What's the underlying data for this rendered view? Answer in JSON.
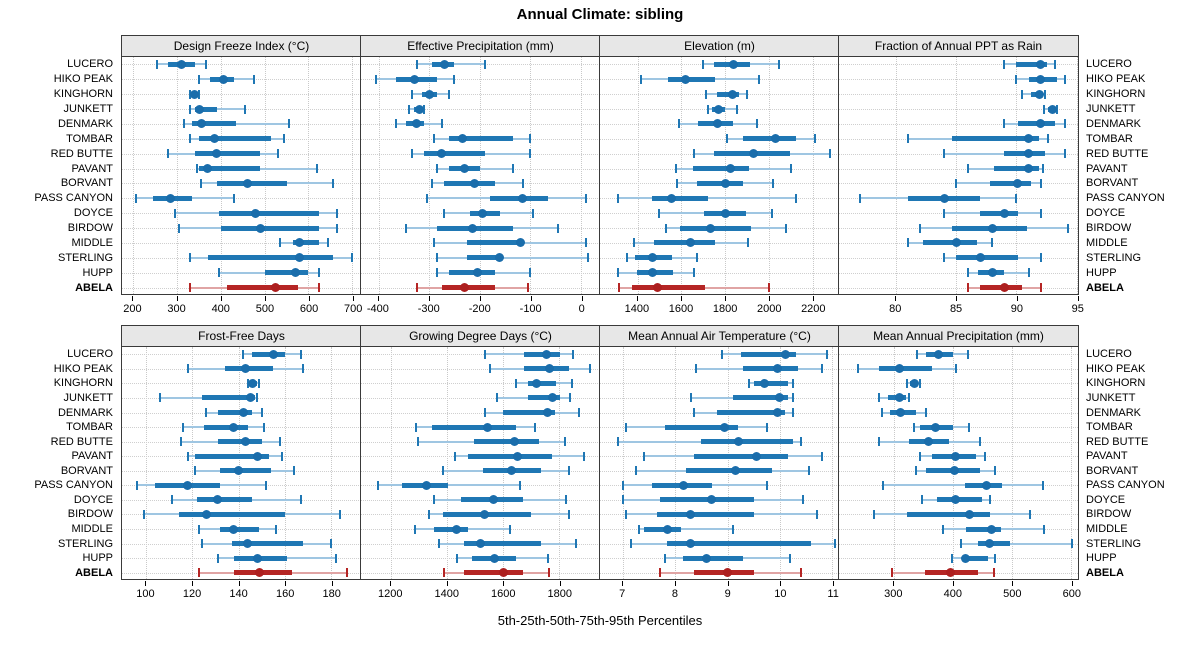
{
  "title": "Annual Climate: sibling",
  "caption": "5th-25th-50th-75th-95th Percentiles",
  "highlight_station": "ABELA",
  "colors": {
    "series": "#1f77b4",
    "series_light": "#9fc6e2",
    "highlight": "#b52524",
    "highlight_light": "#e0a4a4",
    "header_bg": "#e7e7e7",
    "panel_border": "#3a3a3a",
    "grid": "#cccccc"
  },
  "chart_data": {
    "type": "dotplot-percentiles",
    "percentiles": [
      5,
      25,
      50,
      75,
      95
    ],
    "legend_note": "thin line = 5th-95th, thick bar = 25th-75th, dot = 50th percentile",
    "grid": "dotted",
    "stations": [
      "LUCERO",
      "HIKO PEAK",
      "KINGHORN",
      "JUNKETT",
      "DENMARK",
      "TOMBAR",
      "RED BUTTE",
      "PAVANT",
      "BORVANT",
      "PASS CANYON",
      "DOYCE",
      "BIRDOW",
      "MIDDLE",
      "STERLING",
      "HUPP",
      "ABELA"
    ],
    "panels": [
      {
        "title": "Design Freeze Index (°C)",
        "xlim": [
          174,
          720
        ],
        "ticks": [
          200,
          300,
          400,
          500,
          600,
          700
        ],
        "rows": [
          [
            255,
            280,
            310,
            340,
            365
          ],
          [
            350,
            375,
            405,
            430,
            475
          ],
          [
            330,
            335,
            340,
            345,
            350
          ],
          [
            330,
            340,
            350,
            390,
            455
          ],
          [
            315,
            335,
            355,
            435,
            555
          ],
          [
            330,
            350,
            385,
            515,
            545
          ],
          [
            280,
            340,
            390,
            490,
            530
          ],
          [
            345,
            350,
            370,
            490,
            620
          ],
          [
            355,
            390,
            460,
            550,
            655
          ],
          [
            205,
            245,
            285,
            335,
            430
          ],
          [
            295,
            395,
            480,
            625,
            665
          ],
          [
            305,
            400,
            490,
            625,
            665
          ],
          [
            535,
            565,
            580,
            625,
            645
          ],
          [
            330,
            370,
            580,
            655,
            700
          ],
          [
            395,
            500,
            570,
            600,
            625
          ],
          [
            330,
            415,
            525,
            575,
            625
          ]
        ]
      },
      {
        "title": "Effective Precipitation (mm)",
        "xlim": [
          -435,
          38
        ],
        "ticks": [
          -400,
          -300,
          -200,
          -100,
          0
        ],
        "rows": [
          [
            -325,
            -295,
            -270,
            -250,
            -190
          ],
          [
            -405,
            -365,
            -330,
            -285,
            -250
          ],
          [
            -335,
            -315,
            -300,
            -285,
            -260
          ],
          [
            -340,
            -330,
            -320,
            -315,
            -310
          ],
          [
            -365,
            -345,
            -325,
            -310,
            -275
          ],
          [
            -290,
            -260,
            -235,
            -135,
            -100
          ],
          [
            -335,
            -310,
            -275,
            -190,
            -100
          ],
          [
            -285,
            -260,
            -230,
            -200,
            -135
          ],
          [
            -295,
            -270,
            -210,
            -170,
            -115
          ],
          [
            -305,
            -180,
            -115,
            -65,
            10
          ],
          [
            -270,
            -220,
            -195,
            -160,
            -95
          ],
          [
            -345,
            -285,
            -215,
            -135,
            -45
          ],
          [
            -290,
            -225,
            -120,
            -115,
            10
          ],
          [
            -285,
            -225,
            -160,
            -155,
            15
          ],
          [
            -285,
            -260,
            -205,
            -170,
            -100
          ],
          [
            -325,
            -275,
            -230,
            -170,
            -105
          ]
        ]
      },
      {
        "title": "Elevation (m)",
        "xlim": [
          1228,
          2321
        ],
        "ticks": [
          1400,
          1600,
          1800,
          2000,
          2200
        ],
        "rows": [
          [
            1700,
            1750,
            1840,
            1915,
            2045
          ],
          [
            1415,
            1540,
            1620,
            1755,
            1955
          ],
          [
            1715,
            1765,
            1835,
            1865,
            1900
          ],
          [
            1720,
            1740,
            1770,
            1800,
            1855
          ],
          [
            1590,
            1675,
            1765,
            1835,
            1945
          ],
          [
            1810,
            1880,
            2030,
            2125,
            2210
          ],
          [
            1660,
            1750,
            1930,
            2095,
            2280
          ],
          [
            1575,
            1655,
            1825,
            1910,
            2100
          ],
          [
            1580,
            1670,
            1800,
            1880,
            2020
          ],
          [
            1310,
            1465,
            1555,
            1720,
            2125
          ],
          [
            1500,
            1705,
            1800,
            1895,
            2015
          ],
          [
            1530,
            1595,
            1735,
            1920,
            2080
          ],
          [
            1385,
            1475,
            1640,
            1755,
            1905
          ],
          [
            1350,
            1390,
            1470,
            1555,
            1670
          ],
          [
            1310,
            1395,
            1470,
            1560,
            1660
          ],
          [
            1315,
            1375,
            1490,
            1710,
            2000
          ]
        ]
      },
      {
        "title": "Fraction of Annual PPT as Rain",
        "xlim": [
          75.3,
          95.1
        ],
        "ticks": [
          80,
          85,
          90,
          95
        ],
        "rows": [
          [
            89,
            90,
            92,
            92.5,
            93.2
          ],
          [
            90,
            91,
            92,
            93.4,
            94
          ],
          [
            90.5,
            91.2,
            91.9,
            92.2,
            92.4
          ],
          [
            92.3,
            92.6,
            93,
            93.2,
            93.4
          ],
          [
            89,
            90.1,
            92,
            93.2,
            94
          ],
          [
            81,
            84.7,
            91,
            91.9,
            92.6
          ],
          [
            84,
            89,
            91,
            92.4,
            94
          ],
          [
            86,
            88.1,
            91,
            91.9,
            92.2
          ],
          [
            85,
            87.8,
            90.1,
            91.2,
            92
          ],
          [
            77,
            81,
            84,
            87,
            90
          ],
          [
            84,
            87,
            89,
            90.1,
            92
          ],
          [
            82,
            84.7,
            88,
            90.9,
            94.3
          ],
          [
            81,
            82.3,
            85,
            86.7,
            88
          ],
          [
            84,
            85,
            87,
            90.1,
            92
          ],
          [
            86,
            86.8,
            88,
            89,
            91
          ],
          [
            86,
            87,
            89,
            90.5,
            92
          ]
        ]
      },
      {
        "title": "Frost-Free Days",
        "xlim": [
          89.5,
          193
        ],
        "ticks": [
          100,
          120,
          140,
          160,
          180
        ],
        "rows": [
          [
            142,
            146,
            155,
            160,
            167
          ],
          [
            118,
            134,
            143,
            155,
            168
          ],
          [
            144,
            145,
            146,
            148,
            149
          ],
          [
            106,
            124,
            145,
            147,
            148
          ],
          [
            126,
            131,
            142,
            146,
            150
          ],
          [
            116,
            125,
            138,
            144,
            151
          ],
          [
            115,
            131,
            143,
            150,
            158
          ],
          [
            118,
            121,
            148,
            153,
            159
          ],
          [
            121,
            132,
            140,
            154,
            164
          ],
          [
            96,
            104,
            118,
            132,
            152
          ],
          [
            111,
            122,
            131,
            146,
            167
          ],
          [
            99,
            114,
            126,
            160,
            184
          ],
          [
            123,
            132,
            138,
            149,
            156
          ],
          [
            124,
            137,
            144,
            168,
            180
          ],
          [
            131,
            138,
            148,
            161,
            182
          ],
          [
            123,
            138,
            149,
            163,
            187
          ]
        ]
      },
      {
        "title": "Growing Degree Days (°C)",
        "xlim": [
          1093,
          1946
        ],
        "ticks": [
          1200,
          1400,
          1600,
          1800
        ],
        "rows": [
          [
            1535,
            1675,
            1755,
            1805,
            1850
          ],
          [
            1555,
            1675,
            1765,
            1835,
            1910
          ],
          [
            1645,
            1690,
            1720,
            1790,
            1845
          ],
          [
            1580,
            1690,
            1775,
            1805,
            1840
          ],
          [
            1535,
            1600,
            1760,
            1785,
            1870
          ],
          [
            1290,
            1345,
            1545,
            1645,
            1715
          ],
          [
            1295,
            1495,
            1640,
            1730,
            1820
          ],
          [
            1430,
            1475,
            1650,
            1775,
            1890
          ],
          [
            1385,
            1530,
            1630,
            1735,
            1835
          ],
          [
            1155,
            1240,
            1325,
            1405,
            1660
          ],
          [
            1355,
            1450,
            1565,
            1670,
            1825
          ],
          [
            1335,
            1385,
            1535,
            1700,
            1835
          ],
          [
            1285,
            1355,
            1435,
            1475,
            1625
          ],
          [
            1370,
            1460,
            1520,
            1735,
            1860
          ],
          [
            1435,
            1490,
            1570,
            1645,
            1760
          ],
          [
            1390,
            1460,
            1600,
            1670,
            1765
          ]
        ]
      },
      {
        "title": "Mean Annual Air Temperature (°C)",
        "xlim": [
          6.56,
          11.13
        ],
        "ticks": [
          7,
          8,
          9,
          10,
          11
        ],
        "rows": [
          [
            8.9,
            9.25,
            10.1,
            10.3,
            10.9
          ],
          [
            8.4,
            9.3,
            9.95,
            10.35,
            10.8
          ],
          [
            9.4,
            9.5,
            9.7,
            10.15,
            10.25
          ],
          [
            8.3,
            9.1,
            10.0,
            10.15,
            10.25
          ],
          [
            8.35,
            8.8,
            9.95,
            10.1,
            10.25
          ],
          [
            7.05,
            7.8,
            8.95,
            9.2,
            9.75
          ],
          [
            6.9,
            8.5,
            9.2,
            10.25,
            10.4
          ],
          [
            7.4,
            8.35,
            9.55,
            10.15,
            10.8
          ],
          [
            7.25,
            8.2,
            9.15,
            9.85,
            10.55
          ],
          [
            7.0,
            7.55,
            8.15,
            8.7,
            9.75
          ],
          [
            7.0,
            7.7,
            8.7,
            9.5,
            10.45
          ],
          [
            7.05,
            7.65,
            8.3,
            9.5,
            10.7
          ],
          [
            7.3,
            7.4,
            7.85,
            8.1,
            9.1
          ],
          [
            7.15,
            7.85,
            8.3,
            10.6,
            11.05
          ],
          [
            7.8,
            8.15,
            8.6,
            9.3,
            10.2
          ],
          [
            7.7,
            8.35,
            9.0,
            9.5,
            10.4
          ]
        ]
      },
      {
        "title": "Mean Annual Precipitation (mm)",
        "xlim": [
          207,
          612
        ],
        "ticks": [
          300,
          400,
          500,
          600
        ],
        "rows": [
          [
            340,
            355,
            375,
            400,
            425
          ],
          [
            240,
            275,
            310,
            365,
            405
          ],
          [
            323,
            328,
            335,
            340,
            345
          ],
          [
            275,
            290,
            310,
            320,
            325
          ],
          [
            280,
            293,
            311,
            337,
            355
          ],
          [
            334,
            345,
            370,
            400,
            428
          ],
          [
            274,
            326,
            358,
            393,
            446
          ],
          [
            345,
            365,
            405,
            440,
            455
          ],
          [
            338,
            355,
            403,
            446,
            472
          ],
          [
            281,
            420,
            457,
            483,
            552
          ],
          [
            347,
            373,
            405,
            450,
            463
          ],
          [
            266,
            323,
            428,
            463,
            531
          ],
          [
            383,
            422,
            465,
            482,
            555
          ],
          [
            414,
            443,
            462,
            497,
            601
          ],
          [
            399,
            418,
            422,
            459,
            472
          ],
          [
            296,
            352,
            396,
            443,
            470
          ]
        ]
      }
    ]
  }
}
